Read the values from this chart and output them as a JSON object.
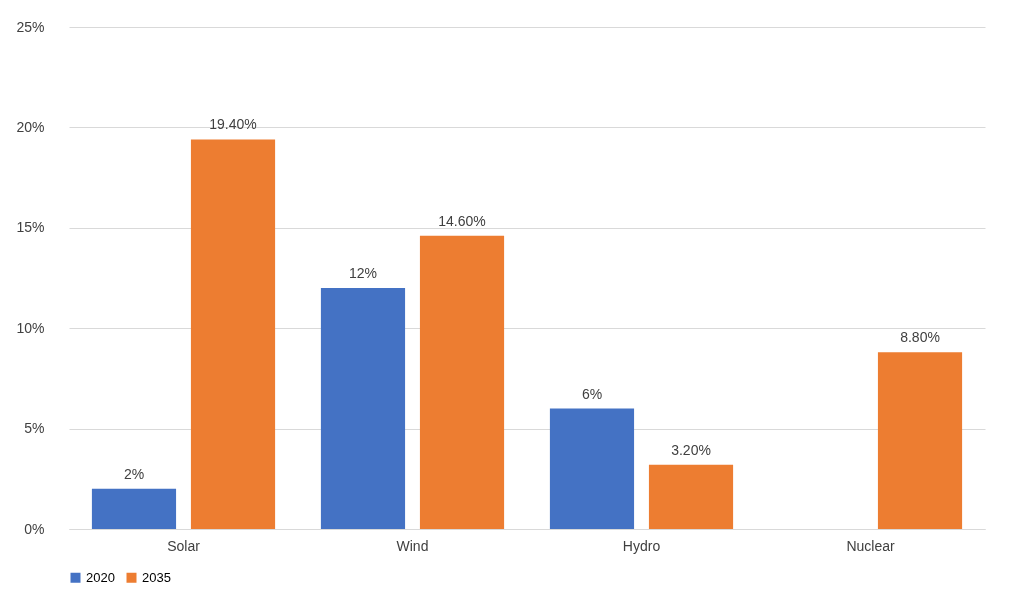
{
  "chart_data": {
    "type": "bar",
    "categories": [
      "Solar",
      "Wind",
      "Hydro",
      "Nuclear"
    ],
    "series": [
      {
        "name": "2020",
        "color": "#4472c4",
        "values": [
          2,
          12,
          6,
          null
        ],
        "value_labels": [
          "2%",
          "12%",
          "6%",
          null
        ]
      },
      {
        "name": "2035",
        "color": "#ed7d31",
        "values": [
          19.4,
          14.6,
          3.2,
          8.8
        ],
        "value_labels": [
          "19.40%",
          "14.60%",
          "3.20%",
          "8.80%"
        ]
      }
    ],
    "ylim": [
      0,
      25
    ],
    "yticks": [
      {
        "value": 0,
        "label": "0%"
      },
      {
        "value": 5,
        "label": "5%"
      },
      {
        "value": 10,
        "label": "10%"
      },
      {
        "value": 15,
        "label": "15%"
      },
      {
        "value": 20,
        "label": "20%"
      },
      {
        "value": 25,
        "label": "25%"
      }
    ],
    "grid": "y",
    "legend": "bottom"
  }
}
